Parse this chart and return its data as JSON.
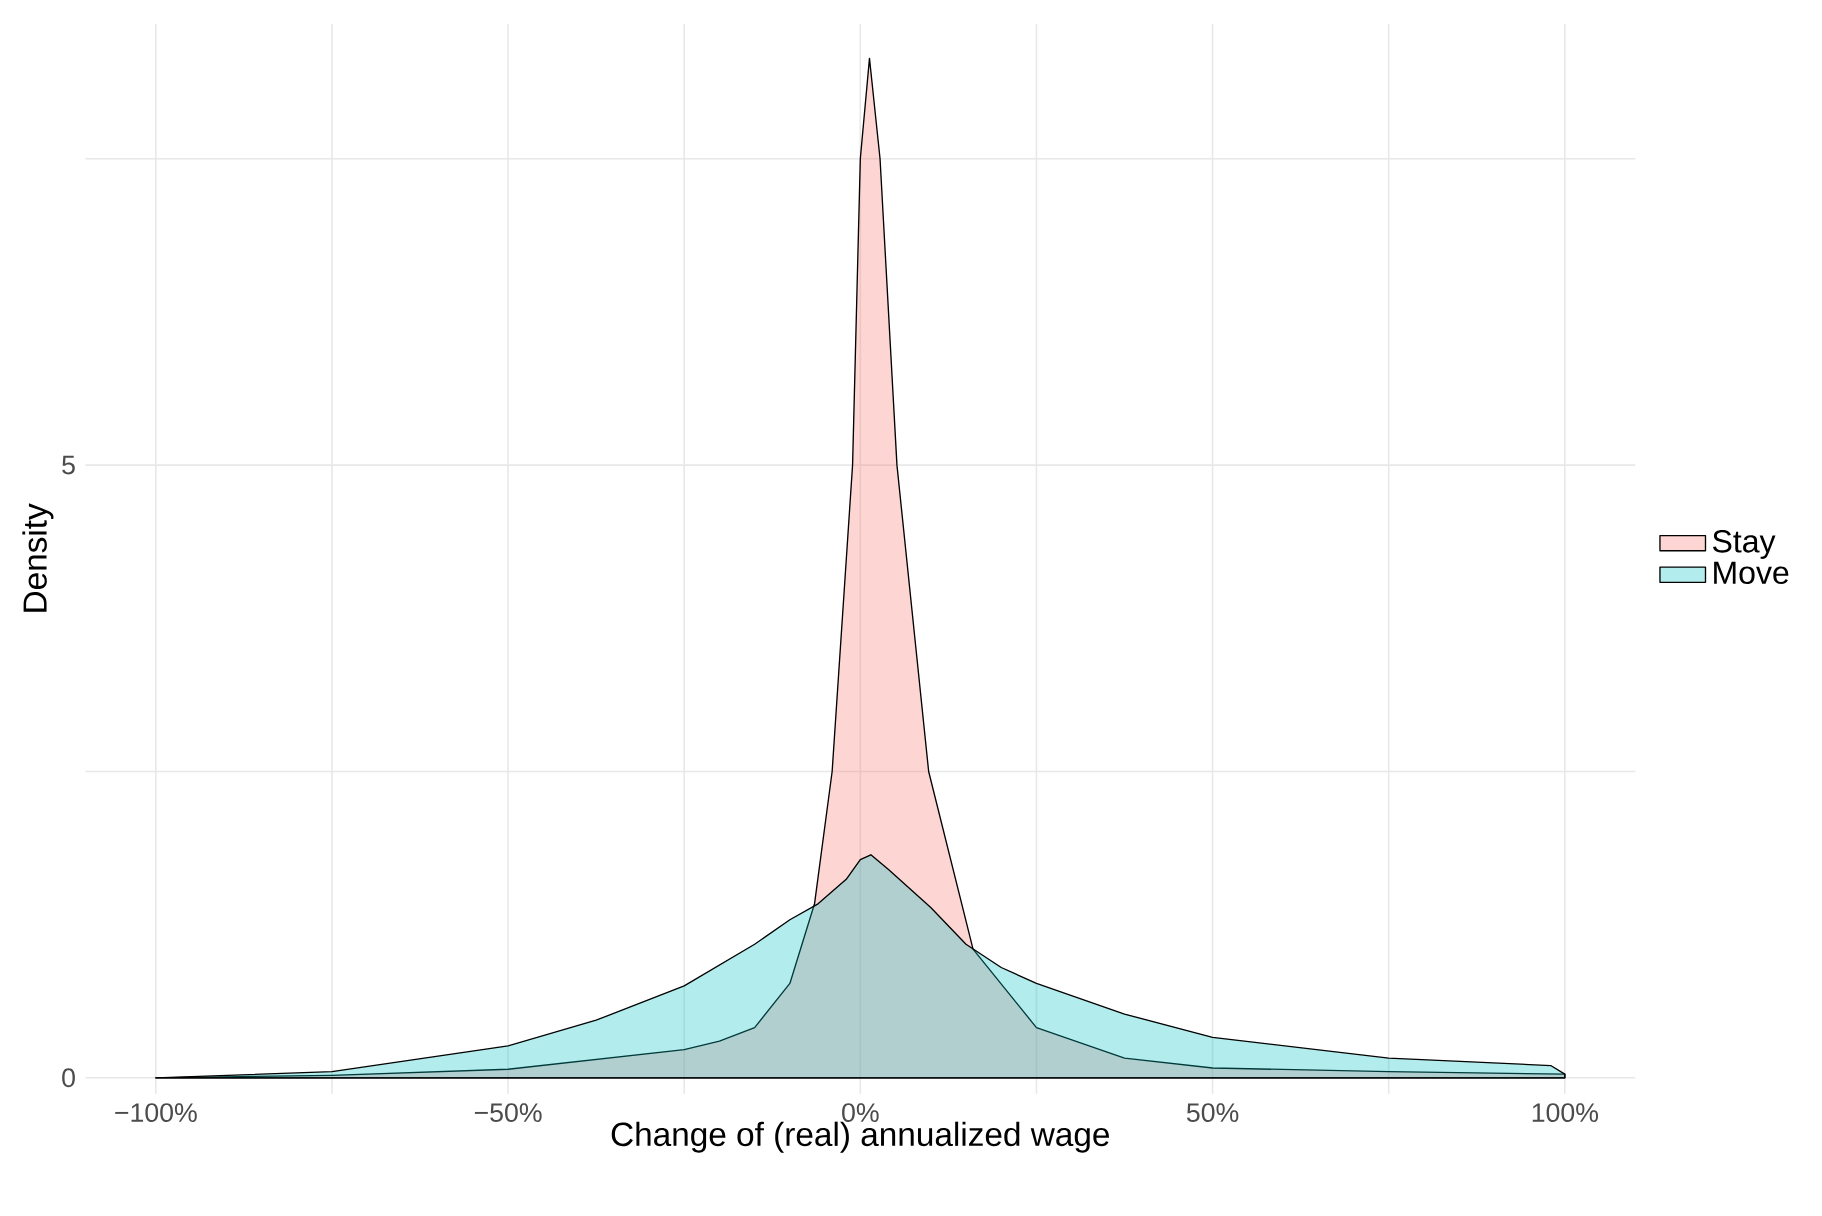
{
  "chart_data": {
    "type": "area",
    "xlabel": "Change of (real) annualized wage",
    "ylabel": "Density",
    "xlim": [
      -110,
      110
    ],
    "ylim": [
      -0.13,
      8.6
    ],
    "xticks": [
      {
        "value": -100,
        "label": "−100%"
      },
      {
        "value": -75,
        "label": null
      },
      {
        "value": -50,
        "label": "−50%"
      },
      {
        "value": -25,
        "label": null
      },
      {
        "value": 0,
        "label": "0%"
      },
      {
        "value": 25,
        "label": null
      },
      {
        "value": 50,
        "label": "50%"
      },
      {
        "value": 75,
        "label": null
      },
      {
        "value": 100,
        "label": "100%"
      }
    ],
    "yticks": [
      0,
      {
        "value": 2.5,
        "label": null
      },
      5,
      {
        "value": 7.5,
        "label": null
      }
    ],
    "grid": true,
    "legend": "right",
    "series": [
      {
        "name": "Stay",
        "color": "#f8766d",
        "x": [
          -100,
          -75,
          -50,
          -25,
          -20,
          -15,
          -10,
          -6.5,
          -4,
          -1.1,
          0,
          1.3,
          2.8,
          5.2,
          9.7,
          16,
          25,
          37.5,
          50,
          75,
          100
        ],
        "values": [
          0,
          0.02,
          0.07,
          0.23,
          0.3,
          0.41,
          0.77,
          1.42,
          2.5,
          5,
          7.5,
          8.32,
          7.5,
          5,
          2.5,
          1.05,
          0.41,
          0.16,
          0.08,
          0.05,
          0.03
        ]
      },
      {
        "name": "Move",
        "color": "#00bfc4",
        "x": [
          -100,
          -75,
          -50,
          -37.5,
          -25,
          -15,
          -10,
          -6,
          -2,
          0,
          1.5,
          4,
          10,
          15,
          20,
          25,
          37.5,
          50,
          75,
          98,
          100
        ],
        "values": [
          0,
          0.05,
          0.26,
          0.47,
          0.75,
          1.09,
          1.29,
          1.42,
          1.62,
          1.78,
          1.82,
          1.7,
          1.39,
          1.09,
          0.9,
          0.77,
          0.52,
          0.33,
          0.16,
          0.1,
          0.03
        ]
      }
    ]
  }
}
